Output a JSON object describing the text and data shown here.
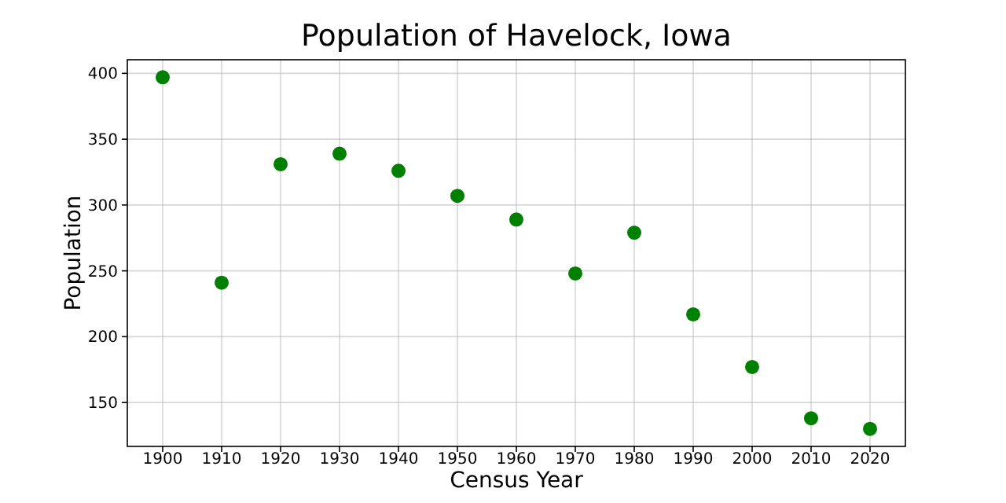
{
  "chart_data": {
    "type": "scatter",
    "title": "Population of Havelock, Iowa",
    "xlabel": "Census Year",
    "ylabel": "Population",
    "x": [
      1900,
      1910,
      1920,
      1930,
      1940,
      1950,
      1960,
      1970,
      1980,
      1990,
      2000,
      2010,
      2020
    ],
    "values": [
      397,
      241,
      331,
      339,
      326,
      307,
      289,
      248,
      279,
      217,
      177,
      138,
      130
    ],
    "color": "#008000",
    "marker": "circle",
    "grid": true,
    "xlim": [
      1894,
      2026
    ],
    "xticks": [
      1900,
      1910,
      1920,
      1930,
      1940,
      1950,
      1960,
      1970,
      1980,
      1990,
      2000,
      2010,
      2020
    ],
    "ylim": [
      116.65,
      410.35
    ],
    "yticks": [
      150,
      200,
      250,
      300,
      350,
      400
    ]
  }
}
